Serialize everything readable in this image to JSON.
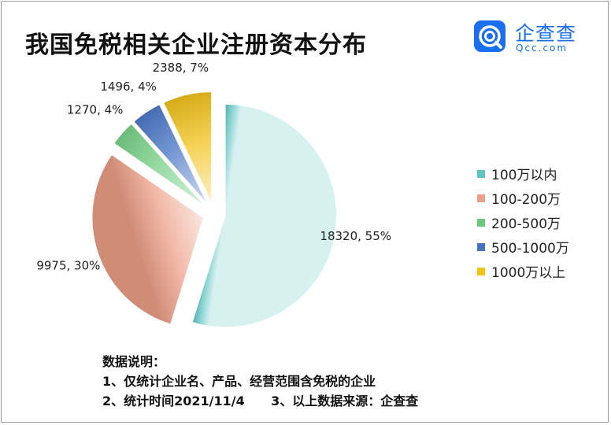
{
  "title": "我国免税相关企业注册资本分布",
  "logo": {
    "name": "企查查",
    "domain": "Qcc.com",
    "color": "#1a6ef0",
    "icon": "qcc-logo-icon"
  },
  "chart_data": {
    "type": "pie",
    "title": "我国免税相关企业注册资本分布",
    "categories": [
      "100万以内",
      "100-200万",
      "200-500万",
      "500-1000万",
      "1000万以上"
    ],
    "values": [
      18320,
      9975,
      1270,
      1496,
      2388
    ],
    "percentages": [
      55,
      30,
      4,
      4,
      7
    ],
    "data_labels": [
      "18320, 55%",
      "9975, 30%",
      "1270, 4%",
      "1496, 4%",
      "2388, 7%"
    ],
    "colors": [
      "#5ec4c1",
      "#ec9f87",
      "#6cc97c",
      "#4472c4",
      "#f2c31b"
    ],
    "exploded": true,
    "legend_position": "right"
  },
  "notes": {
    "heading": "数据说明：",
    "line1": "1、仅统计企业名、产品、经营范围含免税的企业",
    "line2": "2、统计时间2021/11/4      3、以上数据来源：企查查"
  }
}
